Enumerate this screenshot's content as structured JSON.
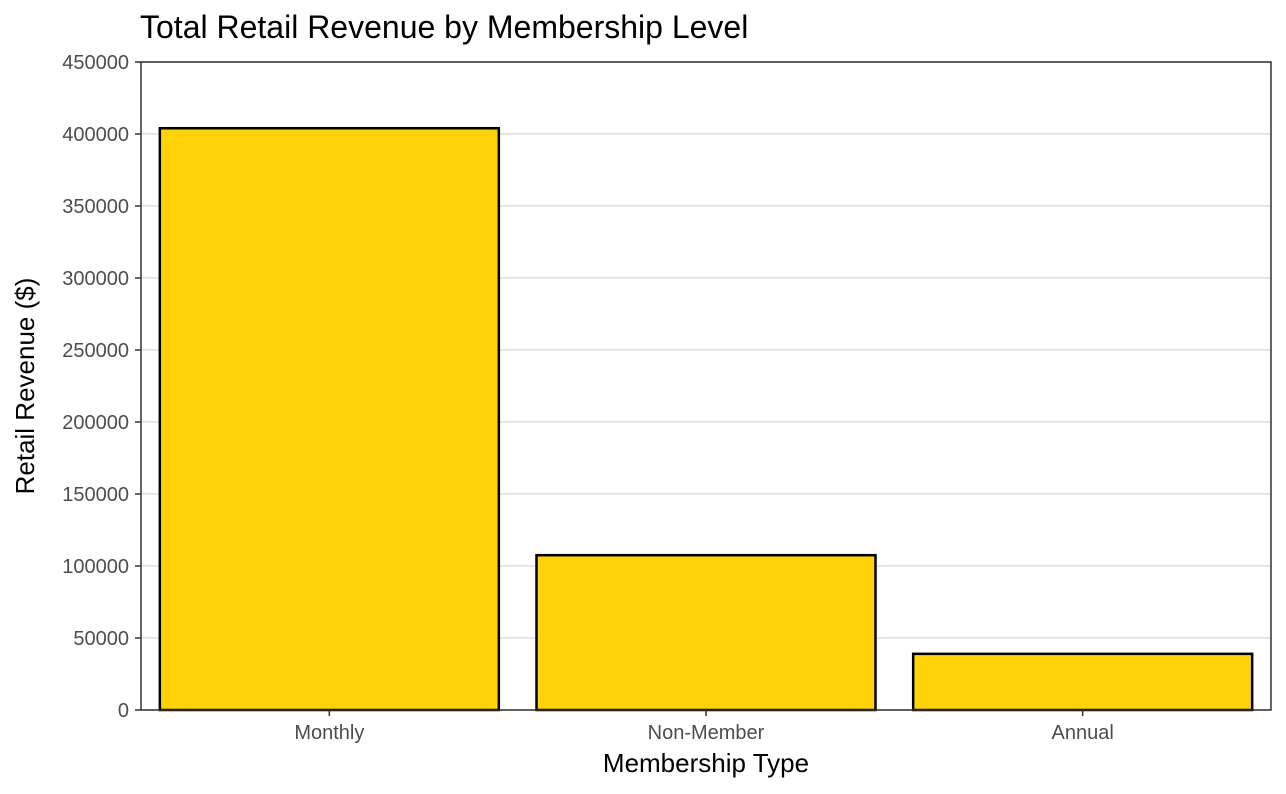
{
  "chart_data": {
    "type": "bar",
    "title": "Total Retail Revenue by Membership Level",
    "xlabel": "Membership Type",
    "ylabel": "Retail Revenue ($)",
    "categories": [
      "Monthly",
      "Non-Member",
      "Annual"
    ],
    "values": [
      404000,
      107500,
      39000
    ],
    "ylim": [
      0,
      450000
    ],
    "yticks": [
      0,
      50000,
      100000,
      150000,
      200000,
      250000,
      300000,
      350000,
      400000,
      450000
    ],
    "ytick_labels": [
      "0",
      "50000",
      "100000",
      "150000",
      "200000",
      "250000",
      "300000",
      "350000",
      "400000",
      "450000"
    ],
    "grid": "horizontal major lines",
    "legend": "none",
    "colors": {
      "bar_fill": "#FFD20A",
      "bar_stroke": "#000000",
      "grid": "#e5e5e5",
      "panel_border": "#333333",
      "tick_text": "#4d4d4d",
      "title_text": "#000000"
    }
  }
}
